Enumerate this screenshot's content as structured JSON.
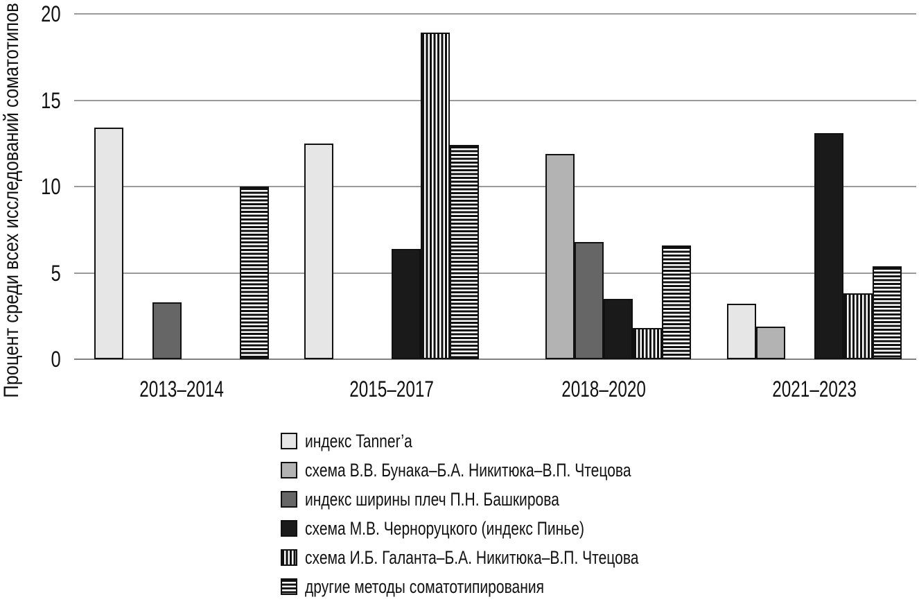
{
  "chart_data": {
    "type": "bar",
    "title": "",
    "xlabel": "",
    "ylabel": "Процент среди всех исследований соматотипов",
    "categories": [
      "2013–2014",
      "2015–2017",
      "2018–2020",
      "2021–2023"
    ],
    "yticks": [
      0,
      5,
      10,
      15,
      20
    ],
    "ylim": [
      0,
      20
    ],
    "grid": "horizontal gridlines at 5, 10, 15, 20",
    "legend_position": "bottom-center",
    "bar_border_color": "#111111",
    "gridline_color": "#9a9a9a",
    "series": [
      {
        "name": "индекс Tanner’a",
        "fill": "solid",
        "color": "#e6e6e6",
        "values": [
          13.4,
          12.5,
          null,
          3.2
        ]
      },
      {
        "name": "схема В.В. Бунака–Б.А. Никитюка–В.П. Чтецова",
        "fill": "solid",
        "color": "#b3b3b3",
        "values": [
          null,
          null,
          11.9,
          1.9
        ]
      },
      {
        "name": "индекс ширины плеч П.Н. Башкирова",
        "fill": "solid",
        "color": "#666666",
        "values": [
          3.3,
          null,
          6.8,
          null
        ]
      },
      {
        "name": "схема М.В. Черноруцкого (индекс Пинье)",
        "fill": "solid",
        "color": "#1a1a1a",
        "values": [
          null,
          6.4,
          3.5,
          13.1
        ]
      },
      {
        "name": "схема И.Б. Галанта–Б.А. Никитюка–В.П. Чтецова",
        "fill": "vertical-stripes",
        "color": "#111111",
        "values": [
          null,
          18.9,
          1.8,
          3.8
        ]
      },
      {
        "name": "другие методы соматотипирования",
        "fill": "horizontal-stripes",
        "color": "#111111",
        "values": [
          10.0,
          12.4,
          6.6,
          5.4
        ]
      }
    ]
  }
}
